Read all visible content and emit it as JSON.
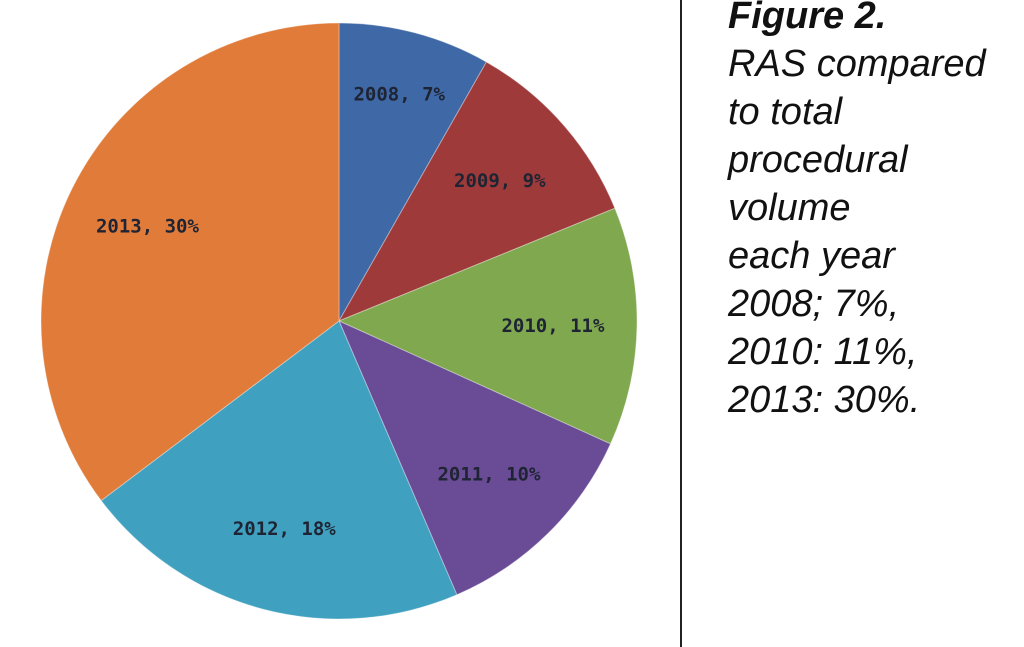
{
  "chart_data": {
    "type": "pie",
    "title": "",
    "start_angle_deg": 0,
    "direction": "clockwise",
    "slices": [
      {
        "category": "2008",
        "label": "2008, 7%",
        "value": 7,
        "color": "#3f68a6"
      },
      {
        "category": "2009",
        "label": "2009, 9%",
        "value": 9,
        "color": "#9e3a3a"
      },
      {
        "category": "2010",
        "label": "2010, 11%",
        "value": 11,
        "color": "#80a84f"
      },
      {
        "category": "2011",
        "label": "2011, 10%",
        "value": 10,
        "color": "#6a4b96"
      },
      {
        "category": "2012",
        "label": "2012, 18%",
        "value": 18,
        "color": "#3fa0bf"
      },
      {
        "category": "2013",
        "label": "2013, 30%",
        "value": 30,
        "color": "#e07b39"
      }
    ]
  },
  "caption": {
    "title": "Figure 2.",
    "body": "RAS compared\nto total\nprocedural\nvolume\neach year\n2008; 7%,\n2010: 11%,\n2013: 30%."
  }
}
